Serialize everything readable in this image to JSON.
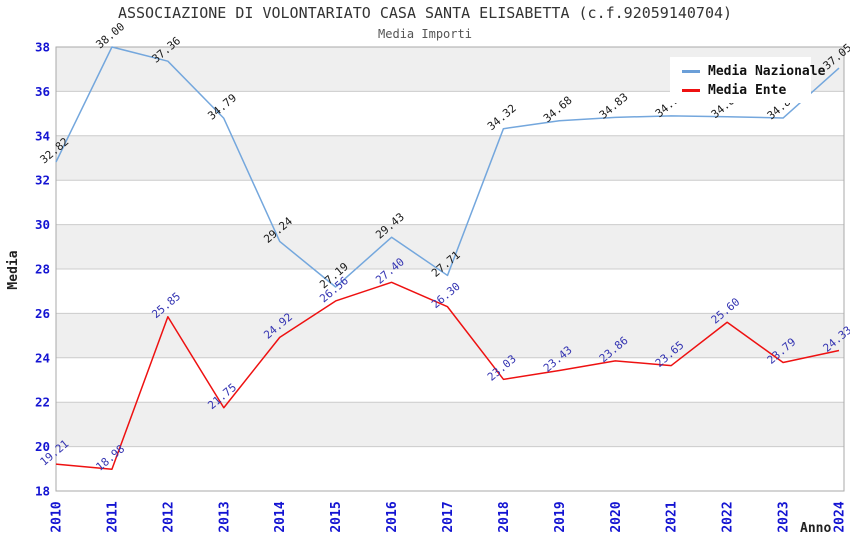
{
  "header": {
    "title": "ASSOCIAZIONE DI VOLONTARIATO CASA SANTA ELISABETTA (c.f.92059140704)",
    "subtitle": "Media Importi"
  },
  "axes": {
    "y_title": "Media",
    "x_title": "Anno"
  },
  "legend": {
    "items": [
      {
        "label": "Media Nazionale",
        "color": "#6b9fd8"
      },
      {
        "label": "Media Ente",
        "color": "#ee1111"
      }
    ]
  },
  "colors": {
    "tick_label": "#1414d2",
    "band_gray": "#efefef",
    "band_white": "#ffffff",
    "gridline": "#cccccc",
    "plot_border": "#aaaaaa",
    "title": "#333333",
    "subtitle": "#555555"
  },
  "chart_data": {
    "type": "line",
    "title": "Media Importi",
    "xlabel": "Anno",
    "ylabel": "Media",
    "x": [
      "2010",
      "2011",
      "2012",
      "2013",
      "2014",
      "2015",
      "2016",
      "2017",
      "2018",
      "2019",
      "2020",
      "2021",
      "2022",
      "2023",
      "2024"
    ],
    "y_ticks": [
      18,
      20,
      22,
      24,
      26,
      28,
      30,
      32,
      34,
      36,
      38
    ],
    "ylim": [
      18,
      38
    ],
    "grid": "horizontal-bands",
    "legend_position": "top-right-inside",
    "point_labels": "two-decimals-rotated",
    "series": [
      {
        "name": "Media Nazionale",
        "color": "#74a7dd",
        "label_color": "#1a1a1a",
        "values": [
          32.82,
          38.0,
          37.36,
          34.79,
          29.24,
          27.19,
          29.43,
          27.71,
          34.32,
          34.68,
          34.83,
          34.9,
          34.86,
          34.8,
          37.05
        ]
      },
      {
        "name": "Media Ente",
        "color": "#ee1111",
        "label_color": "#3434b2",
        "values": [
          19.21,
          18.98,
          25.85,
          21.75,
          24.92,
          26.56,
          27.4,
          26.3,
          23.03,
          23.43,
          23.86,
          23.65,
          25.6,
          23.79,
          24.33
        ]
      }
    ]
  }
}
